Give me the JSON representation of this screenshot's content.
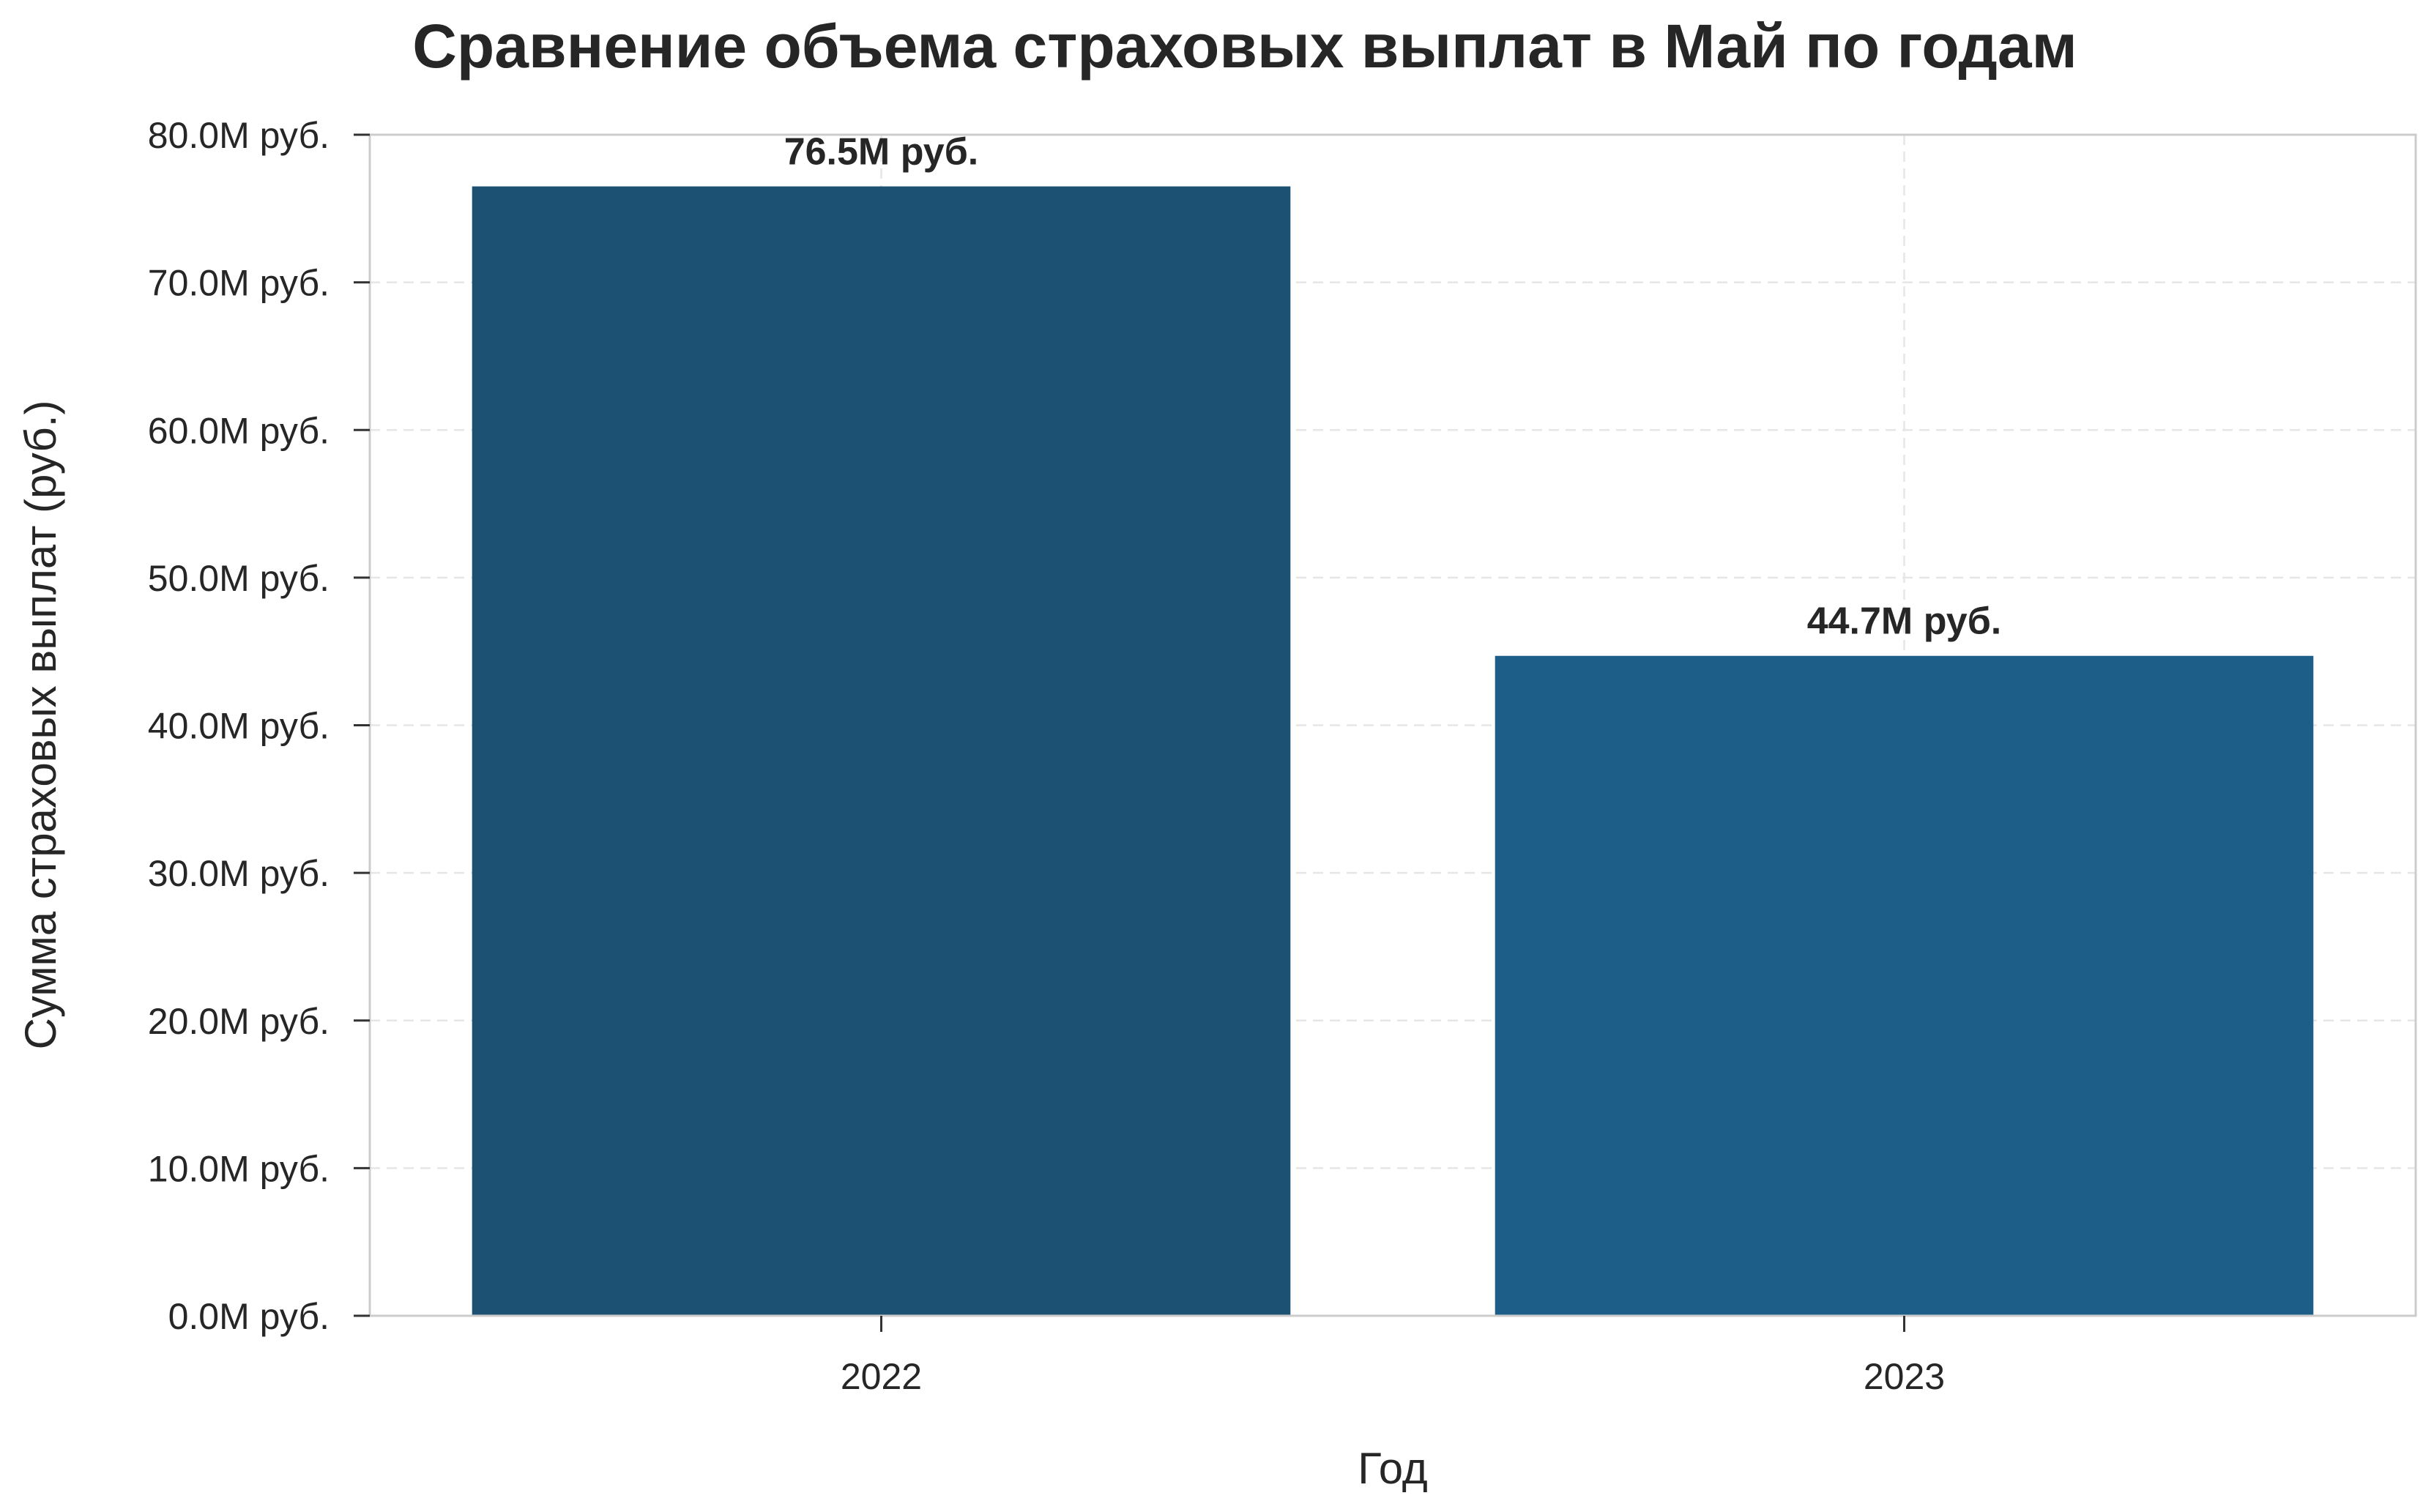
{
  "chart_data": {
    "type": "bar",
    "title": "Сравнение объема страховых выплат в Май по годам",
    "xlabel": "Год",
    "ylabel": "Сумма страховых выплат (руб.)",
    "categories": [
      "2022",
      "2023"
    ],
    "values": [
      76.5,
      44.7
    ],
    "value_unit": "M руб.",
    "data_labels": [
      "76.5M руб.",
      "44.7M руб."
    ],
    "ylim": [
      0,
      80
    ],
    "yticks": [
      0,
      10,
      20,
      30,
      40,
      50,
      60,
      70,
      80
    ],
    "ytick_labels": [
      "0.0M руб.",
      "10.0M руб.",
      "20.0M руб.",
      "30.0M руб.",
      "40.0M руб.",
      "50.0M руб.",
      "60.0M руб.",
      "70.0M руб.",
      "80.0M руб."
    ],
    "bar_colors": [
      "#1c5173",
      "#1d5e88"
    ],
    "grid": true,
    "legend": "none"
  }
}
